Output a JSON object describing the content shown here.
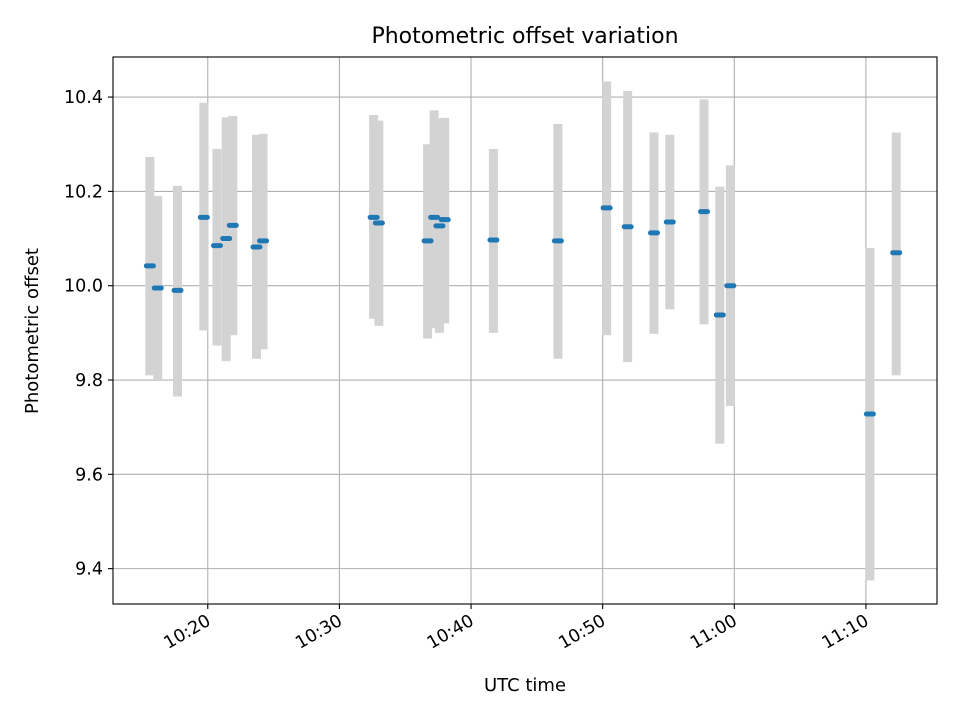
{
  "chart_data": {
    "type": "scatter",
    "title": "Photometric offset variation",
    "xlabel": "UTC time",
    "ylabel": "Photometric offset",
    "xlim": [
      "10:12:48",
      "11:15:24"
    ],
    "ylim": [
      9.325,
      10.485
    ],
    "grid": true,
    "x_tick_labels": [
      "10:20",
      "10:30",
      "10:40",
      "10:50",
      "11:00",
      "11:10"
    ],
    "y_tick_labels": [
      "9.4",
      "9.6",
      "9.8",
      "10.0",
      "10.2",
      "10.4"
    ],
    "colors": {
      "marker": "#1f77b4",
      "errorbar": "#d3d3d3",
      "grid": "#b0b0b0"
    },
    "series": [
      {
        "points": [
          {
            "time": "10:15:36",
            "value": 10.042,
            "low": 9.81,
            "high": 10.273
          },
          {
            "time": "10:16:12",
            "value": 9.995,
            "low": 9.8,
            "high": 10.19
          },
          {
            "time": "10:17:42",
            "value": 9.99,
            "low": 9.765,
            "high": 10.212
          },
          {
            "time": "10:19:42",
            "value": 10.145,
            "low": 9.905,
            "high": 10.388
          },
          {
            "time": "10:20:42",
            "value": 10.085,
            "low": 9.873,
            "high": 10.29
          },
          {
            "time": "10:21:24",
            "value": 10.1,
            "low": 9.84,
            "high": 10.357
          },
          {
            "time": "10:21:54",
            "value": 10.128,
            "low": 9.895,
            "high": 10.36
          },
          {
            "time": "10:23:42",
            "value": 10.082,
            "low": 9.845,
            "high": 10.32
          },
          {
            "time": "10:24:12",
            "value": 10.095,
            "low": 9.865,
            "high": 10.322
          },
          {
            "time": "10:32:36",
            "value": 10.145,
            "low": 9.93,
            "high": 10.362
          },
          {
            "time": "10:33:00",
            "value": 10.133,
            "low": 9.915,
            "high": 10.35
          },
          {
            "time": "10:36:42",
            "value": 10.095,
            "low": 9.888,
            "high": 10.3
          },
          {
            "time": "10:37:12",
            "value": 10.145,
            "low": 9.91,
            "high": 10.372
          },
          {
            "time": "10:37:36",
            "value": 10.127,
            "low": 9.9,
            "high": 10.355
          },
          {
            "time": "10:38:00",
            "value": 10.14,
            "low": 9.92,
            "high": 10.356
          },
          {
            "time": "10:41:42",
            "value": 10.097,
            "low": 9.9,
            "high": 10.29
          },
          {
            "time": "10:46:36",
            "value": 10.095,
            "low": 9.845,
            "high": 10.343
          },
          {
            "time": "10:50:18",
            "value": 10.165,
            "low": 9.895,
            "high": 10.433
          },
          {
            "time": "10:51:54",
            "value": 10.125,
            "low": 9.838,
            "high": 10.413
          },
          {
            "time": "10:53:54",
            "value": 10.112,
            "low": 9.898,
            "high": 10.325
          },
          {
            "time": "10:55:06",
            "value": 10.135,
            "low": 9.95,
            "high": 10.32
          },
          {
            "time": "10:57:42",
            "value": 10.157,
            "low": 9.918,
            "high": 10.395
          },
          {
            "time": "10:58:54",
            "value": 9.938,
            "low": 9.665,
            "high": 10.21
          },
          {
            "time": "10:59:42",
            "value": 10.0,
            "low": 9.745,
            "high": 10.255
          },
          {
            "time": "11:10:18",
            "value": 9.728,
            "low": 9.375,
            "high": 10.08
          },
          {
            "time": "11:12:18",
            "value": 10.07,
            "low": 9.81,
            "high": 10.325
          }
        ]
      }
    ]
  }
}
